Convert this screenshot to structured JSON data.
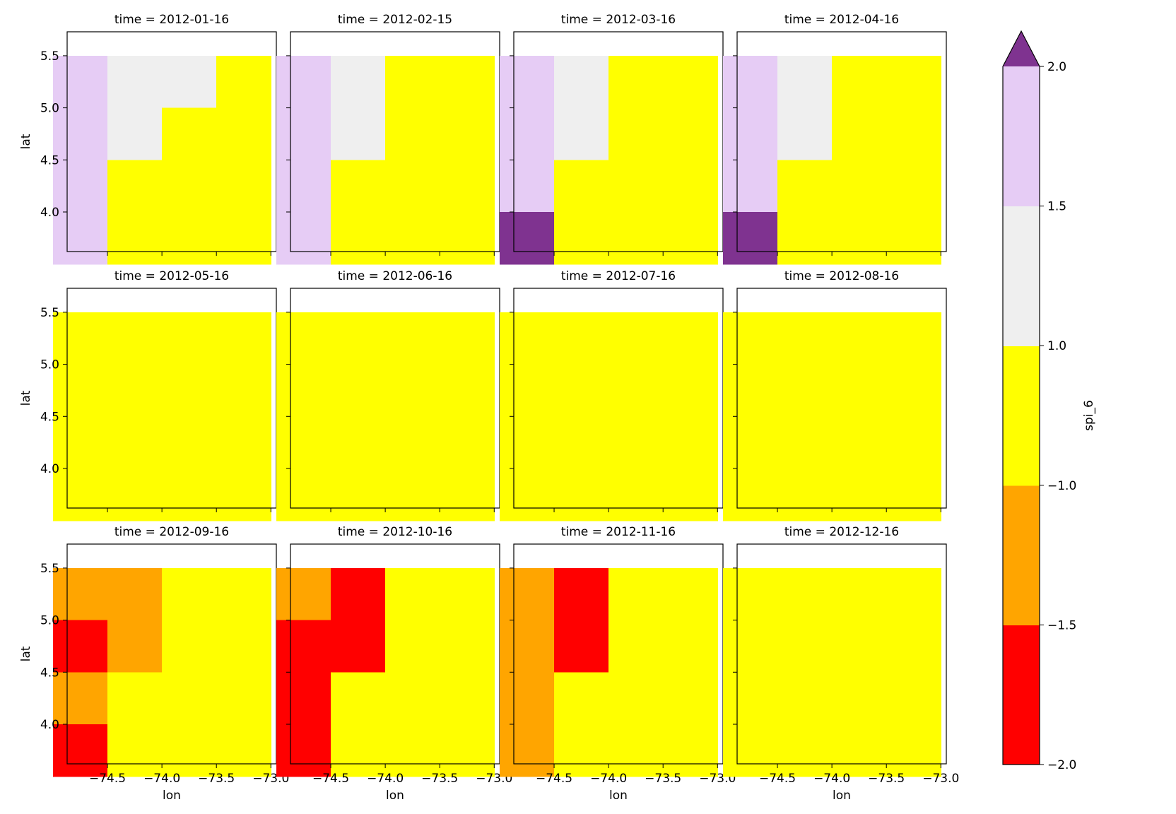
{
  "chart_data": {
    "type": "heatmap",
    "layout": "facet-grid 3x4",
    "xlabel": "lon",
    "ylabel": "lat",
    "x_cells": [
      -74.75,
      -74.25,
      -73.75,
      -73.25
    ],
    "y_cells": [
      3.75,
      4.25,
      4.75,
      5.25
    ],
    "cell_size": 0.5,
    "xlim": [
      -74.87,
      -72.95
    ],
    "ylim": [
      3.62,
      5.73
    ],
    "xticks": [
      -74.5,
      -74.0,
      -73.5,
      -73.0
    ],
    "xtick_labels": [
      "−74.5",
      "−74.0",
      "−73.5",
      "−73.0"
    ],
    "yticks": [
      4.0,
      4.5,
      5.0,
      5.5
    ],
    "ytick_labels": [
      "4.0",
      "4.5",
      "5.0",
      "5.5"
    ],
    "colorbar": {
      "label": "spi_6",
      "boundaries": [
        -2.0,
        -1.5,
        -1.0,
        1.0,
        1.5,
        2.0
      ],
      "tick_labels": [
        "−2.0",
        "−1.5",
        "−1.0",
        "1.0",
        "1.5",
        "2.0"
      ],
      "colors": [
        "#ff0000",
        "#ffa500",
        "#ffff00",
        "#efefef",
        "#e6ccf5"
      ],
      "over_color": "#7f3390",
      "extend": "max"
    },
    "panels": [
      {
        "title": "time = 2012-01-16",
        "rows": [
          [
            1.7,
            1.3,
            1.3,
            0.0
          ],
          [
            1.7,
            1.3,
            0.0,
            0.0
          ],
          [
            1.7,
            0.0,
            0.0,
            0.0
          ],
          [
            1.7,
            0.0,
            0.0,
            0.0
          ]
        ]
      },
      {
        "title": "time = 2012-02-15",
        "rows": [
          [
            1.7,
            1.3,
            0.0,
            0.0
          ],
          [
            1.7,
            1.3,
            0.0,
            0.0
          ],
          [
            1.7,
            0.0,
            0.0,
            0.0
          ],
          [
            1.7,
            0.0,
            0.0,
            0.0
          ]
        ]
      },
      {
        "title": "time = 2012-03-16",
        "rows": [
          [
            1.7,
            1.3,
            0.0,
            0.0
          ],
          [
            1.7,
            1.3,
            0.0,
            0.0
          ],
          [
            1.7,
            0.0,
            0.0,
            0.0
          ],
          [
            2.2,
            0.0,
            0.0,
            0.0
          ]
        ]
      },
      {
        "title": "time = 2012-04-16",
        "rows": [
          [
            1.7,
            1.3,
            0.0,
            0.0
          ],
          [
            1.7,
            1.3,
            0.0,
            0.0
          ],
          [
            1.7,
            0.0,
            0.0,
            0.0
          ],
          [
            2.2,
            0.0,
            0.0,
            0.0
          ]
        ]
      },
      {
        "title": "time = 2012-05-16",
        "rows": [
          [
            0.0,
            0.0,
            0.0,
            0.0
          ],
          [
            0.0,
            0.0,
            0.0,
            0.0
          ],
          [
            0.0,
            0.0,
            0.0,
            0.0
          ],
          [
            0.0,
            0.0,
            0.0,
            0.0
          ]
        ]
      },
      {
        "title": "time = 2012-06-16",
        "rows": [
          [
            0.0,
            0.0,
            0.0,
            0.0
          ],
          [
            0.0,
            0.0,
            0.0,
            0.0
          ],
          [
            0.0,
            0.0,
            0.0,
            0.0
          ],
          [
            0.0,
            0.0,
            0.0,
            0.0
          ]
        ]
      },
      {
        "title": "time = 2012-07-16",
        "rows": [
          [
            0.0,
            0.0,
            0.0,
            0.0
          ],
          [
            0.0,
            0.0,
            0.0,
            0.0
          ],
          [
            0.0,
            0.0,
            0.0,
            0.0
          ],
          [
            0.0,
            0.0,
            0.0,
            0.0
          ]
        ]
      },
      {
        "title": "time = 2012-08-16",
        "rows": [
          [
            0.0,
            0.0,
            0.0,
            0.0
          ],
          [
            0.0,
            0.0,
            0.0,
            0.0
          ],
          [
            0.0,
            0.0,
            0.0,
            0.0
          ],
          [
            0.0,
            0.0,
            0.0,
            0.0
          ]
        ]
      },
      {
        "title": "time = 2012-09-16",
        "rows": [
          [
            -1.2,
            -1.2,
            0.0,
            0.0
          ],
          [
            -1.7,
            -1.2,
            0.0,
            0.0
          ],
          [
            -1.2,
            0.0,
            0.0,
            0.0
          ],
          [
            -1.7,
            0.0,
            0.0,
            0.0
          ]
        ]
      },
      {
        "title": "time = 2012-10-16",
        "rows": [
          [
            -1.2,
            -1.7,
            0.0,
            0.0
          ],
          [
            -1.7,
            -1.7,
            0.0,
            0.0
          ],
          [
            -1.7,
            0.0,
            0.0,
            0.0
          ],
          [
            -1.7,
            0.0,
            0.0,
            0.0
          ]
        ]
      },
      {
        "title": "time = 2012-11-16",
        "rows": [
          [
            -1.2,
            -1.7,
            0.0,
            0.0
          ],
          [
            -1.2,
            -1.7,
            0.0,
            0.0
          ],
          [
            -1.2,
            0.0,
            0.0,
            0.0
          ],
          [
            -1.2,
            0.0,
            0.0,
            0.0
          ]
        ]
      },
      {
        "title": "time = 2012-12-16",
        "rows": [
          [
            0.0,
            0.0,
            0.0,
            0.0
          ],
          [
            0.0,
            0.0,
            0.0,
            0.0
          ],
          [
            0.0,
            0.0,
            0.0,
            0.0
          ],
          [
            0.0,
            0.0,
            0.0,
            0.0
          ]
        ]
      }
    ]
  }
}
